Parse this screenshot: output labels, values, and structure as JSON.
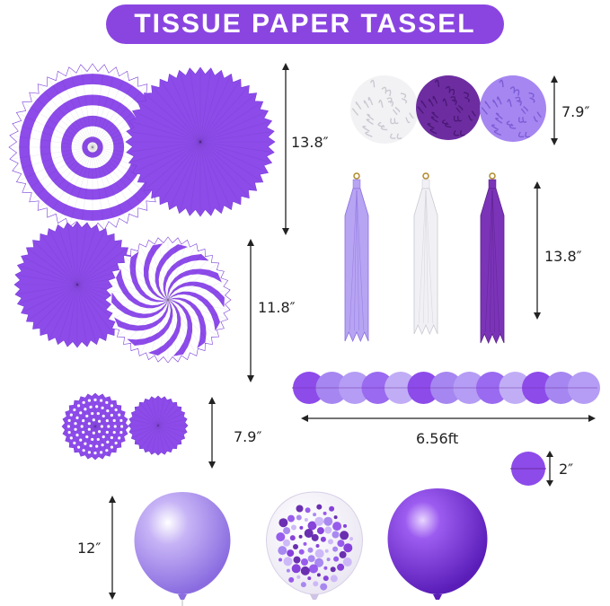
{
  "title": "TISSUE PAPER TASSEL",
  "colors": {
    "banner": "#8a45e0",
    "purple": "#8d4bea",
    "lavender": "#a686f0",
    "deep_purple": "#6d2da0",
    "white": "#ffffff"
  },
  "dimensions": {
    "fans_large": "13.8″",
    "fans_medium": "11.8″",
    "fans_small": "7.9″",
    "pom_poms": "7.9″",
    "tassels": "13.8″",
    "garland_length": "6.56ft",
    "garland_circle": "2″",
    "balloons": "12″"
  },
  "icons": {
    "fans": "paper-fan-icon",
    "pom_poms": "pom-pom-icon",
    "tassels": "tassel-icon",
    "garland": "circle-garland-icon",
    "balloons": "balloon-icon"
  }
}
